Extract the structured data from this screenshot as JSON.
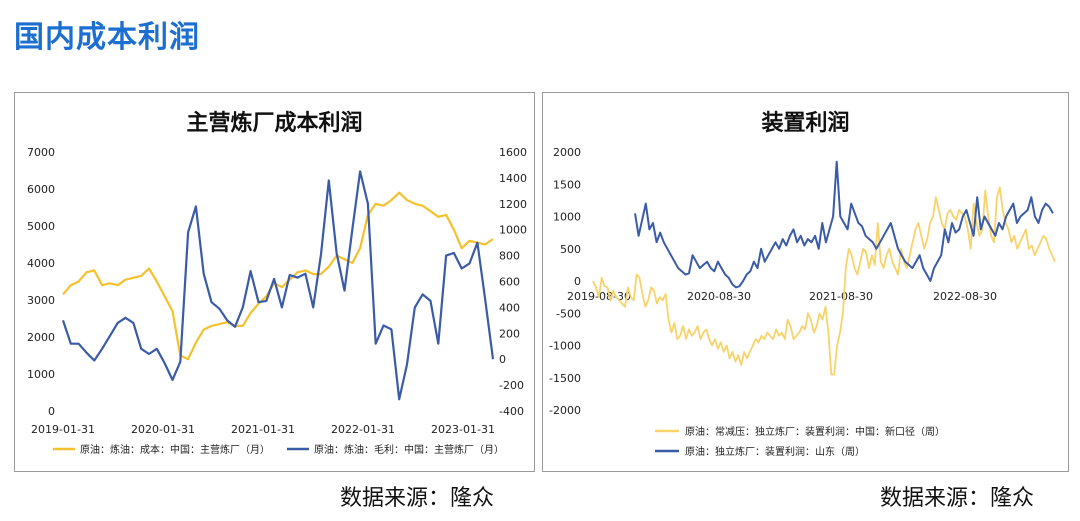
{
  "page": {
    "title": "国内成本利润",
    "source_left": "数据来源：隆众",
    "source_right": "数据来源：隆众"
  },
  "colors": {
    "title_blue": "#1c6fd1",
    "series_gold": "#f5c12e",
    "series_blue": "#3a5ba8",
    "series_lightgold": "#f8d36b"
  },
  "chart_data": [
    {
      "type": "line",
      "title": "主营炼厂成本利润",
      "x_tick_labels": [
        "2019-01-31",
        "2020-01-31",
        "2021-01-31",
        "2022-01-31",
        "2023-01-31"
      ],
      "y_left": {
        "ticks": [
          "0",
          "1000",
          "2000",
          "3000",
          "4000",
          "5000",
          "6000",
          "7000"
        ],
        "ylim": [
          0,
          7000
        ]
      },
      "y_right": {
        "ticks": [
          "-400",
          "-200",
          "0",
          "200",
          "400",
          "600",
          "800",
          "1000",
          "1200",
          "1400",
          "1600"
        ],
        "ylim": [
          -400,
          1600
        ]
      },
      "x_range": [
        0,
        56
      ],
      "series": [
        {
          "name": "原油：炼油：成本：中国：主营炼厂（月）",
          "axis": "left",
          "color": "#f5c12e",
          "values": [
            3150,
            3400,
            3500,
            3750,
            3800,
            3400,
            3450,
            3400,
            3550,
            3600,
            3650,
            3850,
            3500,
            3100,
            2700,
            1500,
            1400,
            1850,
            2200,
            2300,
            2350,
            2400,
            2300,
            2300,
            2650,
            2900,
            3100,
            3450,
            3350,
            3550,
            3750,
            3800,
            3700,
            3700,
            3900,
            4200,
            4100,
            4000,
            4400,
            5300,
            5600,
            5550,
            5700,
            5900,
            5700,
            5600,
            5550,
            5400,
            5250,
            5300,
            4900,
            4400,
            4600,
            4550,
            4500,
            4650
          ]
        },
        {
          "name": "原油：炼油：毛利：中国：主营炼厂（月）",
          "axis": "right",
          "color": "#3a5ba8",
          "values": [
            300,
            120,
            120,
            50,
            -10,
            80,
            180,
            280,
            320,
            280,
            80,
            40,
            80,
            -30,
            -160,
            -20,
            980,
            1180,
            660,
            440,
            390,
            300,
            250,
            400,
            680,
            440,
            450,
            620,
            400,
            650,
            630,
            660,
            400,
            810,
            1380,
            820,
            530,
            1000,
            1450,
            1200,
            120,
            260,
            230,
            -310,
            -40,
            400,
            500,
            450,
            120,
            800,
            820,
            700,
            740,
            900,
            460,
            0
          ]
        }
      ]
    },
    {
      "type": "line",
      "title": "装置利润",
      "x_tick_labels": [
        "2019-08-30",
        "2020-08-30",
        "2021-08-30",
        "2022-08-30"
      ],
      "y": {
        "ticks": [
          "2000",
          "1500",
          "1000",
          "500",
          "0",
          "-500",
          "-1000",
          "-1500",
          "-2000"
        ],
        "ylim": [
          -2000,
          2000
        ]
      },
      "x_range": [
        0,
        220
      ],
      "series": [
        {
          "name": "原油：常减压：独立炼厂：装置利润：中国：新口径（周）",
          "color": "#f8d36b",
          "values": [
            0,
            -100,
            -250,
            50,
            -80,
            -100,
            -300,
            -150,
            -250,
            -300,
            -350,
            -400,
            -100,
            -250,
            -300,
            100,
            50,
            -200,
            -400,
            -300,
            -100,
            -150,
            -350,
            -250,
            -300,
            -200,
            -600,
            -800,
            -650,
            -900,
            -850,
            -700,
            -900,
            -750,
            -850,
            -800,
            -700,
            -900,
            -800,
            -750,
            -900,
            -1000,
            -900,
            -1050,
            -950,
            -1100,
            -1000,
            -1200,
            -1100,
            -1250,
            -1150,
            -1300,
            -1100,
            -1200,
            -1100,
            -1000,
            -900,
            -950,
            -850,
            -900,
            -800,
            -850,
            -900,
            -750,
            -850,
            -800,
            -900,
            -600,
            -700,
            -900,
            -850,
            -800,
            -700,
            -750,
            -500,
            -600,
            -800,
            -700,
            -500,
            -600,
            -400,
            -800,
            -1450,
            -1450,
            -1000,
            -800,
            -500,
            200,
            500,
            400,
            200,
            100,
            300,
            500,
            450,
            200,
            400,
            250,
            900,
            300,
            200,
            400,
            500,
            300,
            200,
            100,
            500,
            300,
            200,
            400,
            600,
            800,
            900,
            700,
            500,
            650,
            900,
            1000,
            1300,
            1100,
            900,
            800,
            1050,
            1100,
            1000,
            950,
            1100,
            1050,
            1000,
            800,
            500,
            1200,
            900,
            700,
            800,
            1400,
            1000,
            700,
            600,
            1300,
            1450,
            1100,
            900,
            800,
            600,
            700,
            500,
            600,
            700,
            800,
            500,
            550,
            400,
            500,
            600,
            700,
            650,
            500,
            400,
            300
          ]
        },
        {
          "name": "原油：独立炼厂：装置利润：山东（周）",
          "color": "#3a5ba8",
          "start_index": 20,
          "values": [
            1050,
            700,
            950,
            1200,
            800,
            900,
            600,
            750,
            600,
            500,
            400,
            300,
            200,
            150,
            100,
            120,
            400,
            300,
            200,
            250,
            300,
            200,
            150,
            300,
            200,
            100,
            50,
            -50,
            -100,
            -80,
            0,
            100,
            150,
            300,
            200,
            500,
            300,
            400,
            500,
            600,
            500,
            650,
            550,
            700,
            800,
            600,
            700,
            550,
            650,
            600,
            700,
            500,
            900,
            600,
            800,
            1000,
            1850,
            1000,
            900,
            800,
            1200,
            1050,
            900,
            850,
            700,
            650,
            600,
            500,
            600,
            700,
            800,
            900,
            700,
            500,
            400,
            300,
            250,
            200,
            300,
            400,
            200,
            100,
            0,
            200,
            300,
            400,
            800,
            600,
            900,
            750,
            800,
            1000,
            1100,
            900,
            700,
            1300,
            800,
            1000,
            900,
            800,
            700,
            900,
            800,
            1000,
            1100,
            1200,
            900,
            1000,
            1050,
            1100,
            1300,
            1000,
            900,
            1100,
            1200,
            1150,
            1050
          ]
        }
      ]
    }
  ]
}
